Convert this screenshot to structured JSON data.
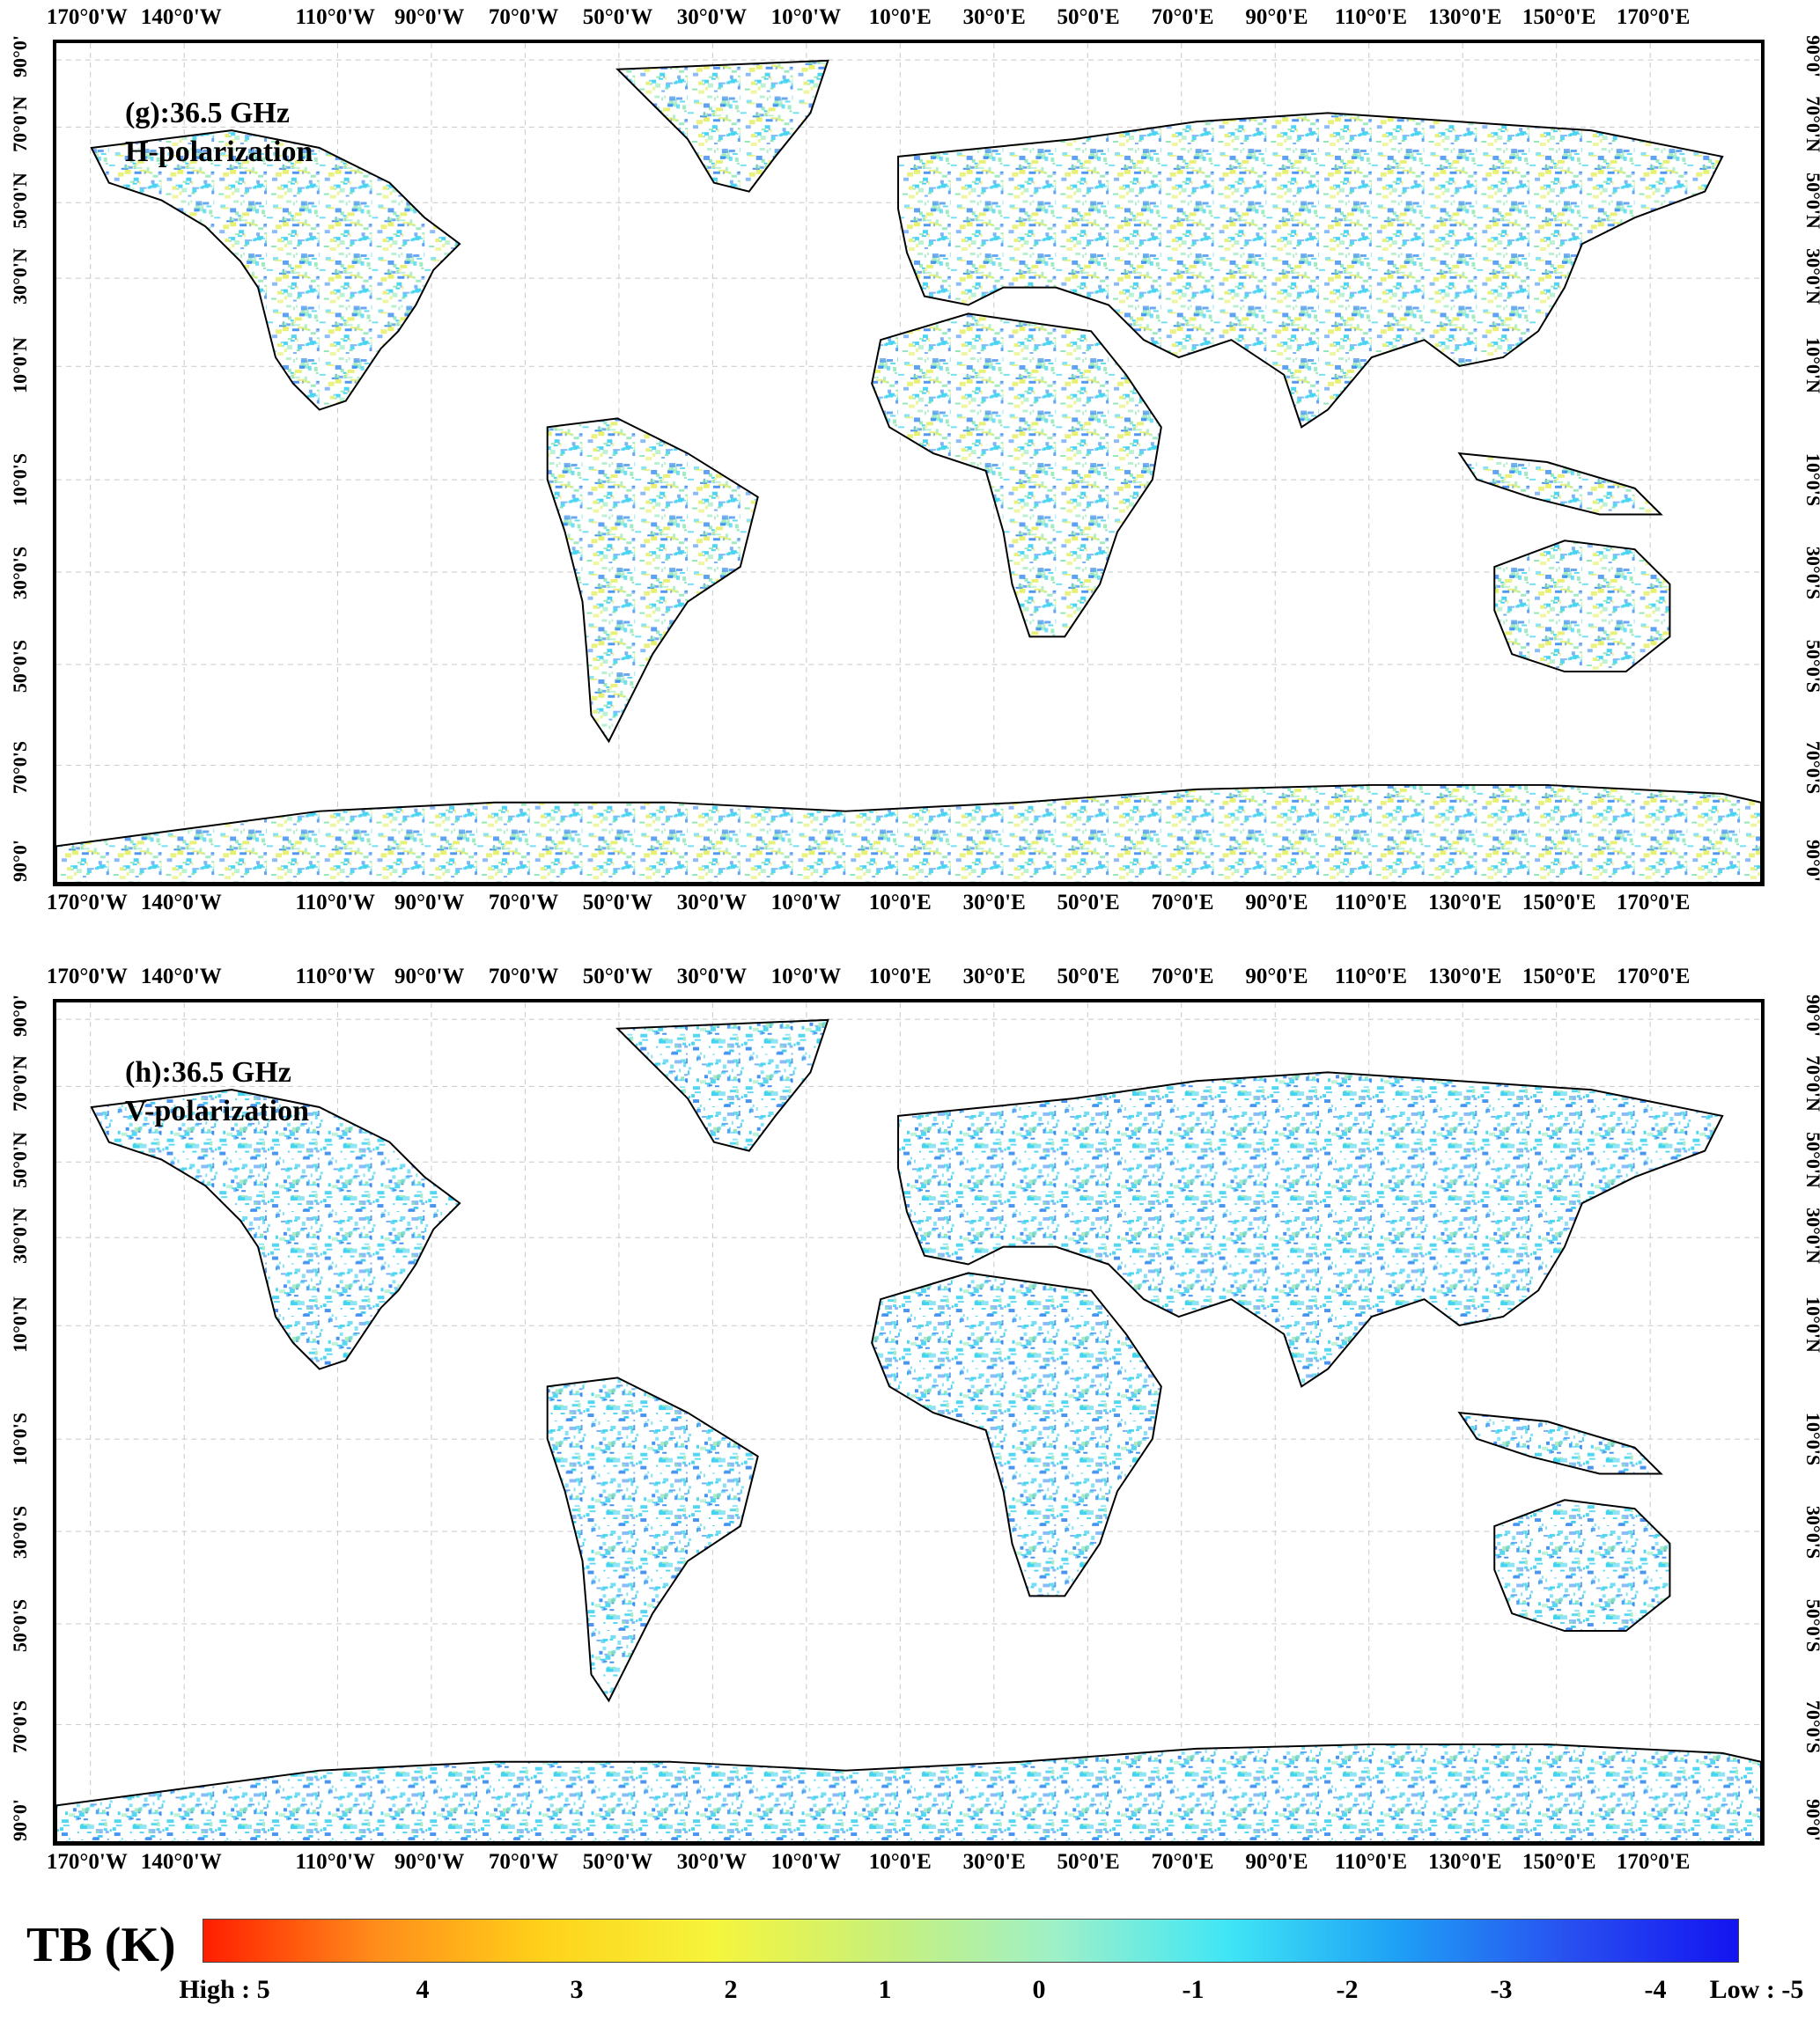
{
  "panels": [
    {
      "id": "g",
      "title_line1": "(g):36.5 GHz",
      "title_line2": "H-polarization",
      "tone": "warm"
    },
    {
      "id": "h",
      "title_line1": "(h):36.5 GHz",
      "title_line2": "V-polarization",
      "tone": "cool"
    }
  ],
  "lon_labels": [
    "170°0'W",
    "140°0'W",
    "110°0'W",
    "90°0'W",
    "70°0'W",
    "50°0'W",
    "30°0'W",
    "10°0'W",
    "10°0'E",
    "30°0'E",
    "50°0'E",
    "70°0'E",
    "90°0'E",
    "110°0'E",
    "130°0'E",
    "150°0'E",
    "170°0'E"
  ],
  "lat_labels": [
    "90°0'",
    "70°0'N",
    "50°0'N",
    "30°0'N",
    "10°0'N",
    "10°0'S",
    "30°0'S",
    "50°0'S",
    "70°0'S",
    "90°0'"
  ],
  "legend": {
    "title": "TB (K)",
    "ticks": [
      "High : 5",
      "4",
      "3",
      "2",
      "1",
      "0",
      "-1",
      "-2",
      "-3",
      "-4",
      "Low : -5"
    ],
    "gradient_colors": [
      "#ff1e00",
      "#ff8c1a",
      "#ffd21a",
      "#f5f53c",
      "#c8f07a",
      "#9ef0c8",
      "#40e6f5",
      "#1ea0f5",
      "#2850f0",
      "#1414f0"
    ]
  },
  "colors": {
    "land_cyan": "#40d2f0",
    "land_blue": "#3c8cf0",
    "land_green": "#8ce6b4",
    "land_yellow": "#e6f06e"
  }
}
